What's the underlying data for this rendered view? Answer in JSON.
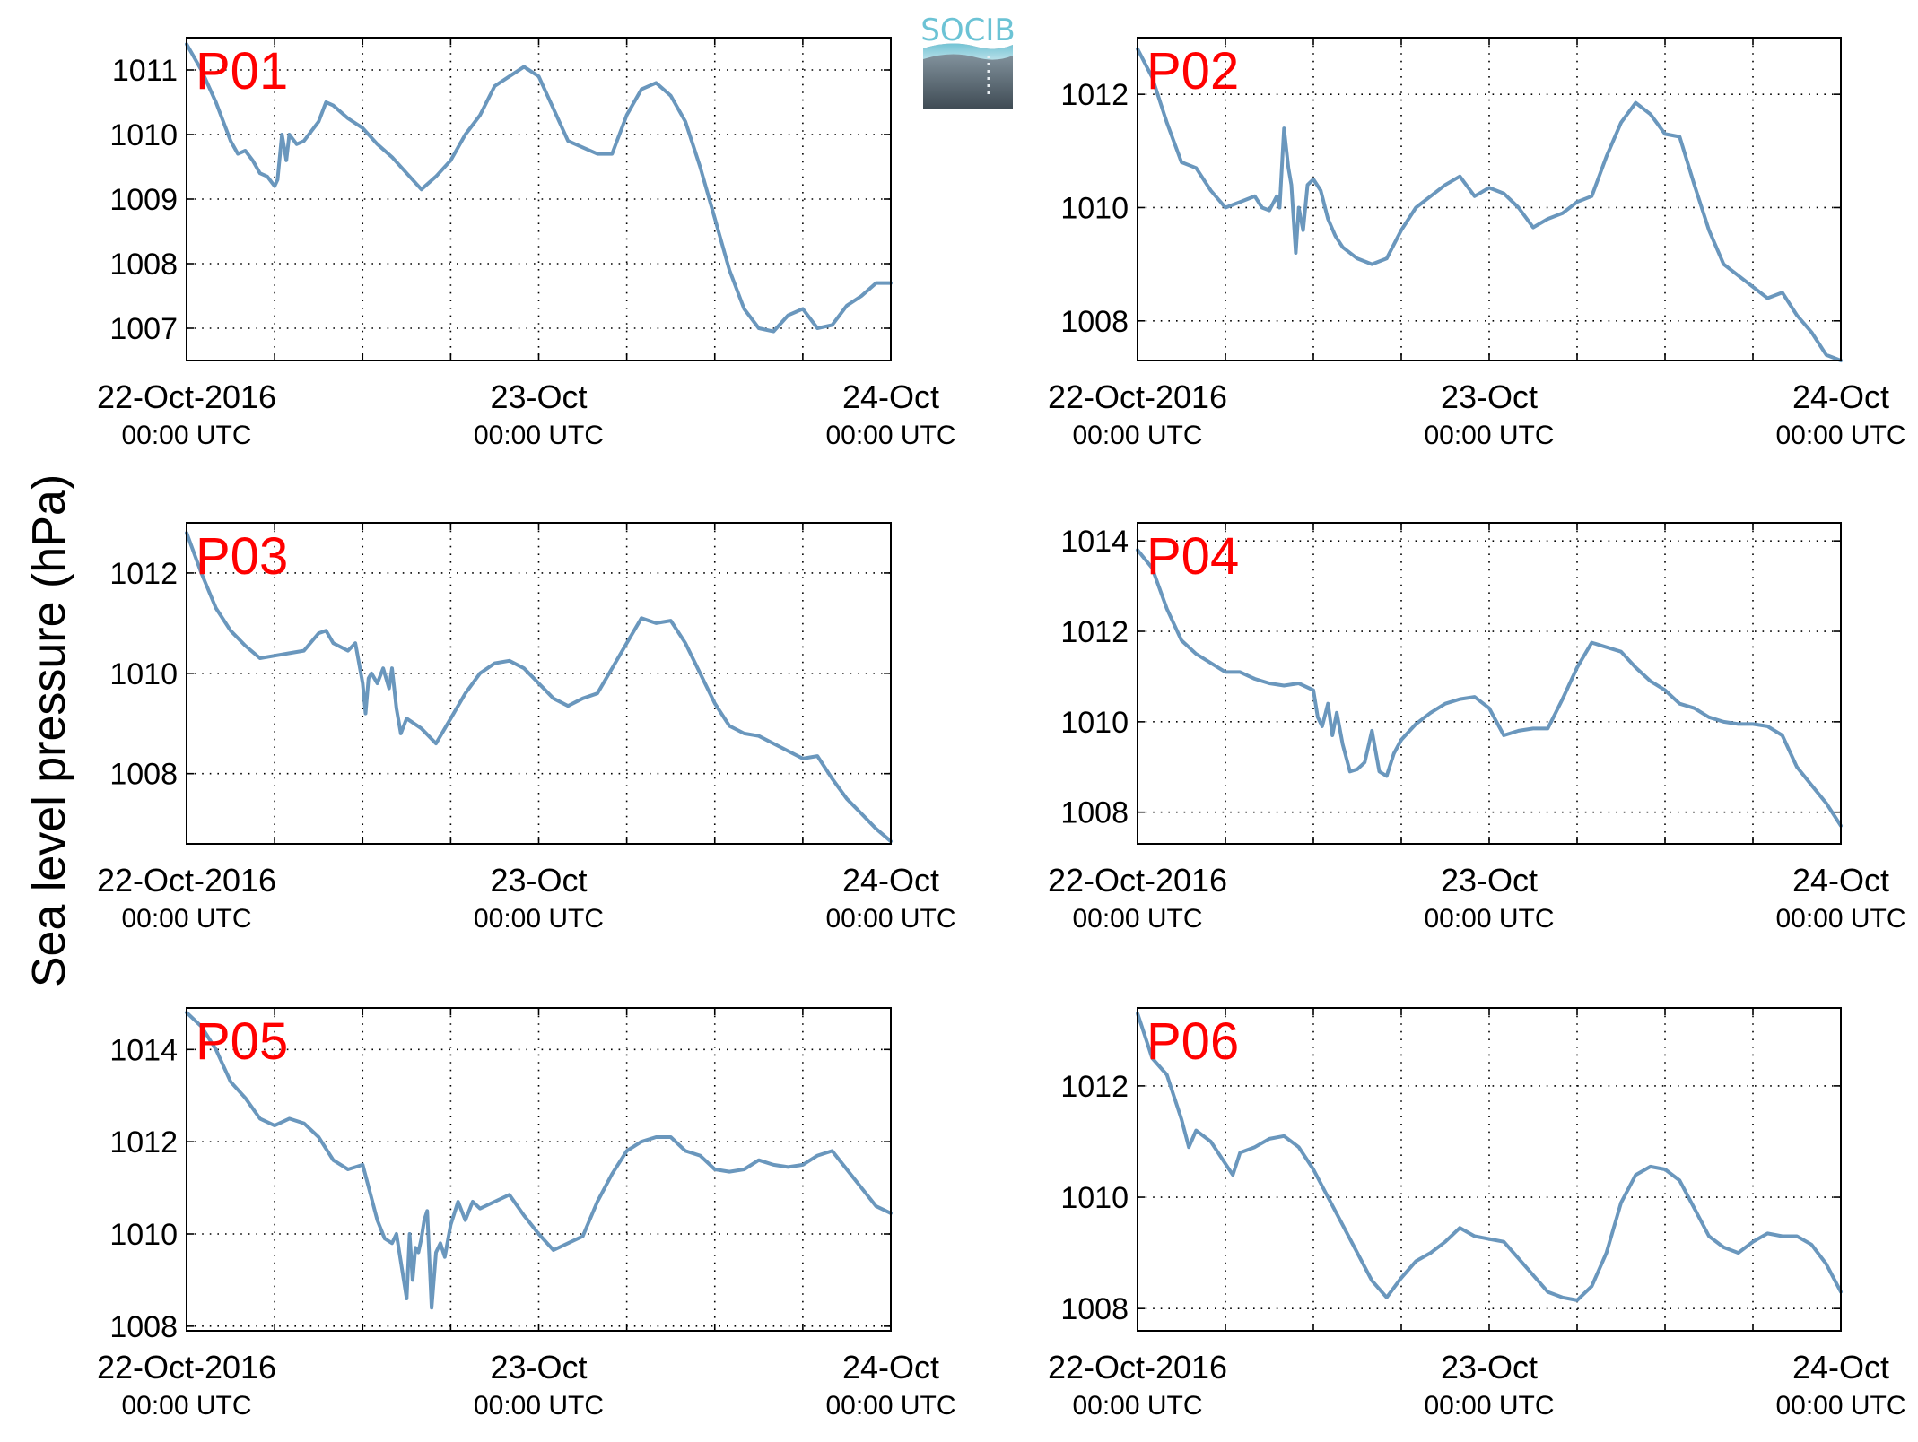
{
  "figure": {
    "ylabel": "Sea level pressure (hPa)",
    "logo_text": "SOCIB",
    "x_tick_labels": [
      {
        "date": "22-Oct-2016",
        "time": "00:00 UTC"
      },
      {
        "date": "23-Oct",
        "time": "00:00 UTC"
      },
      {
        "date": "24-Oct",
        "time": "00:00 UTC"
      }
    ],
    "x_range_hours": [
      0,
      48
    ],
    "line_color": "#6a97bd",
    "label_color": "#ff0000",
    "grid": "dotted"
  },
  "chart_data": [
    {
      "type": "line",
      "panel_label": "P01",
      "xlabel": "",
      "ylabel": "",
      "ylim": [
        1006.5,
        1011.5
      ],
      "yticks": [
        1007,
        1008,
        1009,
        1010,
        1011
      ],
      "x": [
        0,
        1,
        2,
        3,
        3.5,
        4,
        4.5,
        5,
        5.5,
        6,
        6.2,
        6.5,
        6.8,
        7,
        7.5,
        8,
        9,
        9.5,
        10,
        11,
        12,
        13,
        14,
        15,
        16,
        17,
        18,
        19,
        20,
        21,
        22,
        23,
        24,
        25,
        26,
        27,
        28,
        29,
        30,
        31,
        32,
        33,
        34,
        35,
        36,
        37,
        38,
        39,
        40,
        41,
        42,
        43,
        44,
        45,
        46,
        47,
        48
      ],
      "y": [
        1011.4,
        1011.0,
        1010.5,
        1009.9,
        1009.7,
        1009.75,
        1009.6,
        1009.4,
        1009.35,
        1009.2,
        1009.3,
        1010.0,
        1009.6,
        1010.0,
        1009.85,
        1009.9,
        1010.2,
        1010.5,
        1010.45,
        1010.25,
        1010.1,
        1009.85,
        1009.65,
        1009.4,
        1009.15,
        1009.35,
        1009.6,
        1010.0,
        1010.3,
        1010.75,
        1010.9,
        1011.05,
        1010.9,
        1010.4,
        1009.9,
        1009.8,
        1009.7,
        1009.7,
        1010.3,
        1010.7,
        1010.8,
        1010.6,
        1010.2,
        1009.5,
        1008.7,
        1007.9,
        1007.3,
        1007.0,
        1006.95,
        1007.2,
        1007.3,
        1007.0,
        1007.05,
        1007.35,
        1007.5,
        1007.7,
        1007.7
      ]
    },
    {
      "type": "line",
      "panel_label": "P02",
      "xlabel": "",
      "ylabel": "",
      "ylim": [
        1007.3,
        1013.0
      ],
      "yticks": [
        1008,
        1010,
        1012
      ],
      "x": [
        0,
        1,
        2,
        3,
        4,
        5,
        6,
        7,
        8,
        8.5,
        9,
        9.5,
        9.7,
        10,
        10.3,
        10.5,
        10.8,
        11,
        11.3,
        11.6,
        12,
        12.5,
        13,
        13.5,
        14,
        15,
        16,
        17,
        18,
        19,
        20,
        21,
        22,
        23,
        24,
        25,
        26,
        27,
        28,
        29,
        30,
        31,
        32,
        33,
        34,
        35,
        36,
        37,
        38,
        39,
        40,
        41,
        42,
        43,
        44,
        45,
        46,
        47,
        48
      ],
      "y": [
        1012.8,
        1012.3,
        1011.5,
        1010.8,
        1010.7,
        1010.3,
        1010.0,
        1010.1,
        1010.2,
        1010.0,
        1009.95,
        1010.2,
        1010.0,
        1011.4,
        1010.7,
        1010.4,
        1009.2,
        1010.0,
        1009.6,
        1010.4,
        1010.5,
        1010.3,
        1009.8,
        1009.5,
        1009.3,
        1009.1,
        1009.0,
        1009.1,
        1009.6,
        1010.0,
        1010.2,
        1010.4,
        1010.55,
        1010.2,
        1010.35,
        1010.25,
        1010.0,
        1009.65,
        1009.8,
        1009.9,
        1010.1,
        1010.2,
        1010.9,
        1011.5,
        1011.85,
        1011.65,
        1011.3,
        1011.25,
        1010.4,
        1009.6,
        1009.0,
        1008.8,
        1008.6,
        1008.4,
        1008.5,
        1008.1,
        1007.8,
        1007.4,
        1007.3
      ]
    },
    {
      "type": "line",
      "panel_label": "P03",
      "xlabel": "",
      "ylabel": "",
      "ylim": [
        1006.6,
        1013.0
      ],
      "yticks": [
        1008,
        1010,
        1012
      ],
      "x": [
        0,
        1,
        2,
        3,
        4,
        5,
        6,
        7,
        8,
        9,
        9.5,
        10,
        11,
        11.5,
        12,
        12.2,
        12.4,
        12.6,
        13,
        13.4,
        13.8,
        14,
        14.3,
        14.6,
        15,
        16,
        17,
        18,
        19,
        20,
        21,
        22,
        23,
        24,
        25,
        26,
        27,
        28,
        29,
        30,
        31,
        32,
        33,
        34,
        35,
        36,
        37,
        38,
        39,
        40,
        41,
        42,
        43,
        44,
        45,
        46,
        47,
        48
      ],
      "y": [
        1012.8,
        1012.0,
        1011.3,
        1010.85,
        1010.55,
        1010.3,
        1010.35,
        1010.4,
        1010.45,
        1010.8,
        1010.85,
        1010.6,
        1010.45,
        1010.6,
        1009.8,
        1009.2,
        1009.9,
        1010.0,
        1009.8,
        1010.1,
        1009.7,
        1010.1,
        1009.3,
        1008.8,
        1009.1,
        1008.9,
        1008.6,
        1009.1,
        1009.6,
        1010.0,
        1010.2,
        1010.25,
        1010.1,
        1009.8,
        1009.5,
        1009.35,
        1009.5,
        1009.6,
        1010.1,
        1010.6,
        1011.1,
        1011.0,
        1011.05,
        1010.6,
        1010.0,
        1009.4,
        1008.95,
        1008.8,
        1008.75,
        1008.6,
        1008.45,
        1008.3,
        1008.35,
        1007.9,
        1007.5,
        1007.2,
        1006.9,
        1006.65
      ]
    },
    {
      "type": "line",
      "panel_label": "P04",
      "xlabel": "",
      "ylabel": "",
      "ylim": [
        1007.3,
        1014.4
      ],
      "yticks": [
        1008,
        1010,
        1012,
        1014
      ],
      "x": [
        0,
        1,
        2,
        3,
        4,
        5,
        6,
        7,
        8,
        9,
        10,
        11,
        12,
        12.3,
        12.6,
        13,
        13.3,
        13.6,
        14,
        14.5,
        15,
        15.5,
        16,
        16.5,
        17,
        17.5,
        18,
        19,
        20,
        21,
        22,
        23,
        24,
        25,
        26,
        27,
        28,
        29,
        30,
        31,
        32,
        33,
        34,
        35,
        36,
        37,
        38,
        39,
        40,
        41,
        42,
        43,
        44,
        45,
        46,
        47,
        48
      ],
      "y": [
        1013.8,
        1013.4,
        1012.5,
        1011.8,
        1011.5,
        1011.3,
        1011.1,
        1011.1,
        1010.95,
        1010.85,
        1010.8,
        1010.85,
        1010.7,
        1010.1,
        1009.9,
        1010.4,
        1009.7,
        1010.2,
        1009.5,
        1008.9,
        1008.95,
        1009.1,
        1009.8,
        1008.9,
        1008.8,
        1009.3,
        1009.6,
        1009.95,
        1010.2,
        1010.4,
        1010.5,
        1010.55,
        1010.3,
        1009.7,
        1009.8,
        1009.85,
        1009.85,
        1010.5,
        1011.2,
        1011.75,
        1011.65,
        1011.55,
        1011.2,
        1010.9,
        1010.7,
        1010.4,
        1010.3,
        1010.1,
        1010.0,
        1009.95,
        1009.95,
        1009.9,
        1009.7,
        1009.0,
        1008.6,
        1008.2,
        1007.7
      ]
    },
    {
      "type": "line",
      "panel_label": "P05",
      "xlabel": "",
      "ylabel": "",
      "ylim": [
        1007.9,
        1014.9
      ],
      "yticks": [
        1008,
        1010,
        1012,
        1014
      ],
      "x": [
        0,
        1,
        2,
        3,
        4,
        5,
        6,
        7,
        8,
        9,
        10,
        11,
        12,
        13,
        13.5,
        14,
        14.3,
        14.6,
        15,
        15.2,
        15.4,
        15.6,
        15.8,
        16,
        16.2,
        16.4,
        16.7,
        17,
        17.3,
        17.6,
        18,
        18.5,
        19,
        19.5,
        20,
        21,
        22,
        23,
        24,
        25,
        26,
        27,
        28,
        29,
        30,
        31,
        32,
        33,
        34,
        35,
        36,
        37,
        38,
        39,
        40,
        41,
        42,
        43,
        44,
        45,
        46,
        47,
        48
      ],
      "y": [
        1014.8,
        1014.5,
        1014.0,
        1013.3,
        1012.95,
        1012.5,
        1012.35,
        1012.5,
        1012.4,
        1012.1,
        1011.6,
        1011.4,
        1011.5,
        1010.3,
        1009.9,
        1009.8,
        1010.0,
        1009.4,
        1008.6,
        1010.0,
        1009.0,
        1009.7,
        1009.6,
        1009.9,
        1010.3,
        1010.5,
        1008.4,
        1009.6,
        1009.8,
        1009.5,
        1010.2,
        1010.7,
        1010.3,
        1010.7,
        1010.55,
        1010.7,
        1010.85,
        1010.4,
        1010.0,
        1009.65,
        1009.8,
        1009.95,
        1010.7,
        1011.3,
        1011.8,
        1012.0,
        1012.1,
        1012.1,
        1011.8,
        1011.7,
        1011.4,
        1011.35,
        1011.4,
        1011.6,
        1011.5,
        1011.45,
        1011.5,
        1011.7,
        1011.8,
        1011.4,
        1011.0,
        1010.6,
        1010.45
      ]
    },
    {
      "type": "line",
      "panel_label": "P06",
      "xlabel": "",
      "ylabel": "",
      "ylim": [
        1007.6,
        1013.4
      ],
      "yticks": [
        1008,
        1010,
        1012
      ],
      "x": [
        0,
        0.5,
        1,
        2,
        3,
        3.5,
        4,
        5,
        6,
        6.5,
        7,
        8,
        9,
        10,
        11,
        12,
        13,
        14,
        15,
        16,
        17,
        18,
        19,
        20,
        21,
        22,
        23,
        24,
        25,
        26,
        27,
        28,
        29,
        30,
        31,
        32,
        33,
        34,
        35,
        36,
        37,
        38,
        39,
        40,
        41,
        42,
        43,
        44,
        45,
        46,
        47,
        48
      ],
      "y": [
        1013.3,
        1012.9,
        1012.5,
        1012.2,
        1011.4,
        1010.9,
        1011.2,
        1011.0,
        1010.6,
        1010.4,
        1010.8,
        1010.9,
        1011.05,
        1011.1,
        1010.9,
        1010.5,
        1010.0,
        1009.5,
        1009.0,
        1008.5,
        1008.2,
        1008.55,
        1008.85,
        1009.0,
        1009.2,
        1009.45,
        1009.3,
        1009.25,
        1009.2,
        1008.9,
        1008.6,
        1008.3,
        1008.2,
        1008.15,
        1008.4,
        1009.0,
        1009.9,
        1010.4,
        1010.55,
        1010.5,
        1010.3,
        1009.8,
        1009.3,
        1009.1,
        1009.0,
        1009.2,
        1009.35,
        1009.3,
        1009.3,
        1009.15,
        1008.8,
        1008.3
      ]
    }
  ]
}
